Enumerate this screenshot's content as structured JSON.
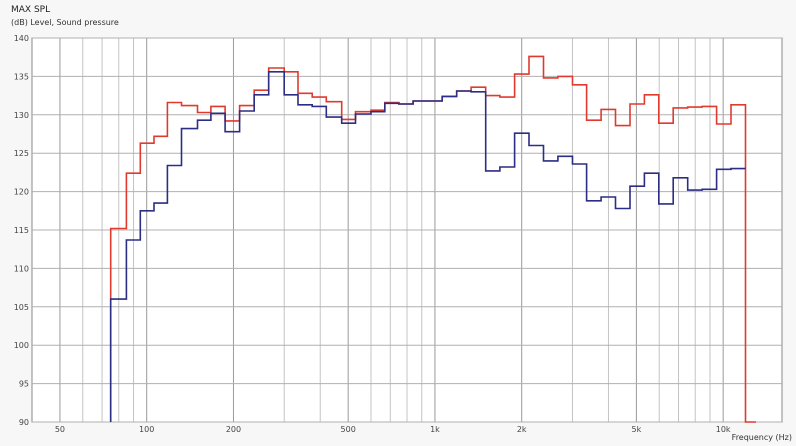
{
  "chart_data": {
    "type": "line",
    "title": "MAX SPL",
    "ylabel": "(dB)  Level, Sound pressure",
    "xlabel": "Frequency  (Hz)",
    "x_scale": "log",
    "xlim": [
      40,
      16000
    ],
    "ylim": [
      90,
      140
    ],
    "y_ticks": [
      90,
      95,
      100,
      105,
      110,
      115,
      120,
      125,
      130,
      135,
      140
    ],
    "x_ticks": [
      {
        "value": 50,
        "label": "50"
      },
      {
        "value": 100,
        "label": "100"
      },
      {
        "value": 200,
        "label": "200"
      },
      {
        "value": 500,
        "label": "500"
      },
      {
        "value": 1000,
        "label": "1k"
      },
      {
        "value": 2000,
        "label": "2k"
      },
      {
        "value": 5000,
        "label": "5k"
      },
      {
        "value": 10000,
        "label": "10k"
      }
    ],
    "grid": true,
    "series": [
      {
        "color": "#e03a2f",
        "x": [
          75,
          85,
          95,
          106,
          118,
          132,
          150,
          167,
          187,
          210,
          236,
          265,
          300,
          335,
          375,
          420,
          475,
          530,
          600,
          670,
          750,
          840,
          945,
          1060,
          1190,
          1335,
          1500,
          1680,
          1890,
          2120,
          2380,
          2670,
          3000,
          3360,
          3770,
          4230,
          4750,
          5330,
          5980,
          6710,
          7530,
          8450,
          9490,
          10650,
          11950,
          13000
        ],
        "y": [
          115.2,
          122.4,
          126.3,
          127.2,
          131.6,
          131.2,
          130.3,
          131.1,
          129.2,
          131.2,
          133.2,
          136.1,
          135.6,
          132.8,
          132.3,
          131.7,
          129.4,
          130.4,
          130.6,
          131.6,
          131.4,
          131.8,
          131.8,
          132.4,
          133.1,
          133.6,
          132.5,
          132.3,
          135.3,
          137.6,
          134.8,
          135.0,
          133.9,
          129.3,
          130.7,
          128.6,
          131.4,
          132.6,
          128.9,
          130.9,
          131.0,
          131.1,
          128.8,
          131.3,
          90.0,
          90.0
        ]
      },
      {
        "color": "#2c2d84",
        "x": [
          75,
          85,
          95,
          106,
          118,
          132,
          150,
          167,
          187,
          210,
          236,
          265,
          300,
          335,
          375,
          420,
          475,
          530,
          600,
          670,
          750,
          840,
          945,
          1060,
          1190,
          1335,
          1500,
          1680,
          1890,
          2120,
          2380,
          2670,
          3000,
          3360,
          3770,
          4230,
          4750,
          5330,
          5980,
          6710,
          7530,
          8450,
          9490,
          10650,
          11950
        ],
        "y": [
          106.0,
          113.7,
          117.5,
          118.5,
          123.4,
          128.2,
          129.3,
          130.2,
          127.8,
          130.5,
          132.6,
          135.6,
          132.6,
          131.3,
          131.1,
          129.7,
          128.9,
          130.1,
          130.4,
          131.5,
          131.4,
          131.8,
          131.8,
          132.4,
          133.1,
          133.0,
          122.7,
          123.2,
          127.6,
          126.0,
          124.0,
          124.6,
          123.6,
          118.8,
          119.3,
          117.8,
          120.7,
          122.4,
          118.4,
          121.8,
          120.2,
          120.3,
          122.9,
          123.0,
          123.0
        ]
      }
    ]
  }
}
